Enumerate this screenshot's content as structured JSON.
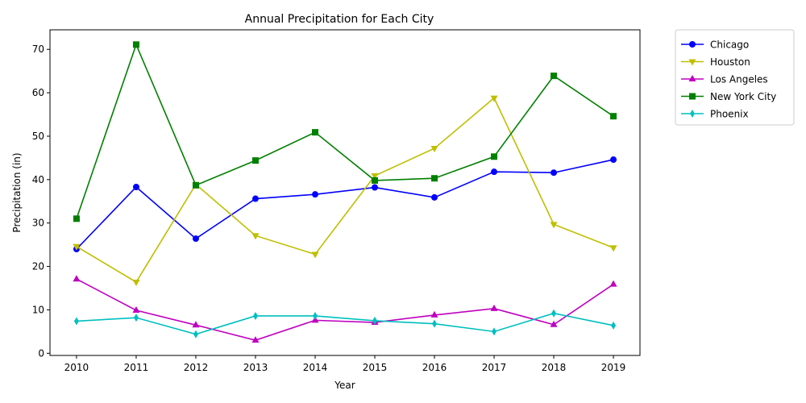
{
  "chart_data": {
    "type": "line",
    "title": "Annual Precipitation for Each City",
    "xlabel": "Year",
    "ylabel": "Precipitation (in)",
    "x": [
      "2010",
      "2011",
      "2012",
      "2013",
      "2014",
      "2015",
      "2016",
      "2017",
      "2018",
      "2019"
    ],
    "ylim": [
      -0.5,
      74.5
    ],
    "yticks": [
      0,
      10,
      20,
      30,
      40,
      50,
      60,
      70
    ],
    "grid": false,
    "legend_position": "outside-top-right",
    "series": [
      {
        "name": "Chicago",
        "color": "#0000ff",
        "marker": "circle",
        "values": [
          24.0,
          38.3,
          26.4,
          35.6,
          36.6,
          38.2,
          35.9,
          41.8,
          41.6,
          44.6
        ]
      },
      {
        "name": "Houston",
        "color": "#bfbf00",
        "marker": "triangle-down",
        "values": [
          24.6,
          16.4,
          38.9,
          27.1,
          22.8,
          40.9,
          47.2,
          58.8,
          29.7,
          24.3
        ]
      },
      {
        "name": "Los Angeles",
        "color": "#bf00bf",
        "marker": "triangle-up",
        "values": [
          17.1,
          9.9,
          6.5,
          3.0,
          7.6,
          7.1,
          8.8,
          10.3,
          6.6,
          15.9
        ]
      },
      {
        "name": "New York City",
        "color": "#008000",
        "marker": "square",
        "values": [
          31.0,
          71.1,
          38.7,
          44.4,
          50.9,
          39.8,
          40.3,
          45.3,
          63.9,
          54.6
        ]
      },
      {
        "name": "Phoenix",
        "color": "#00bfbf",
        "marker": "diamond",
        "values": [
          7.4,
          8.2,
          4.4,
          8.6,
          8.6,
          7.5,
          6.8,
          5.0,
          9.2,
          6.4
        ]
      }
    ]
  }
}
